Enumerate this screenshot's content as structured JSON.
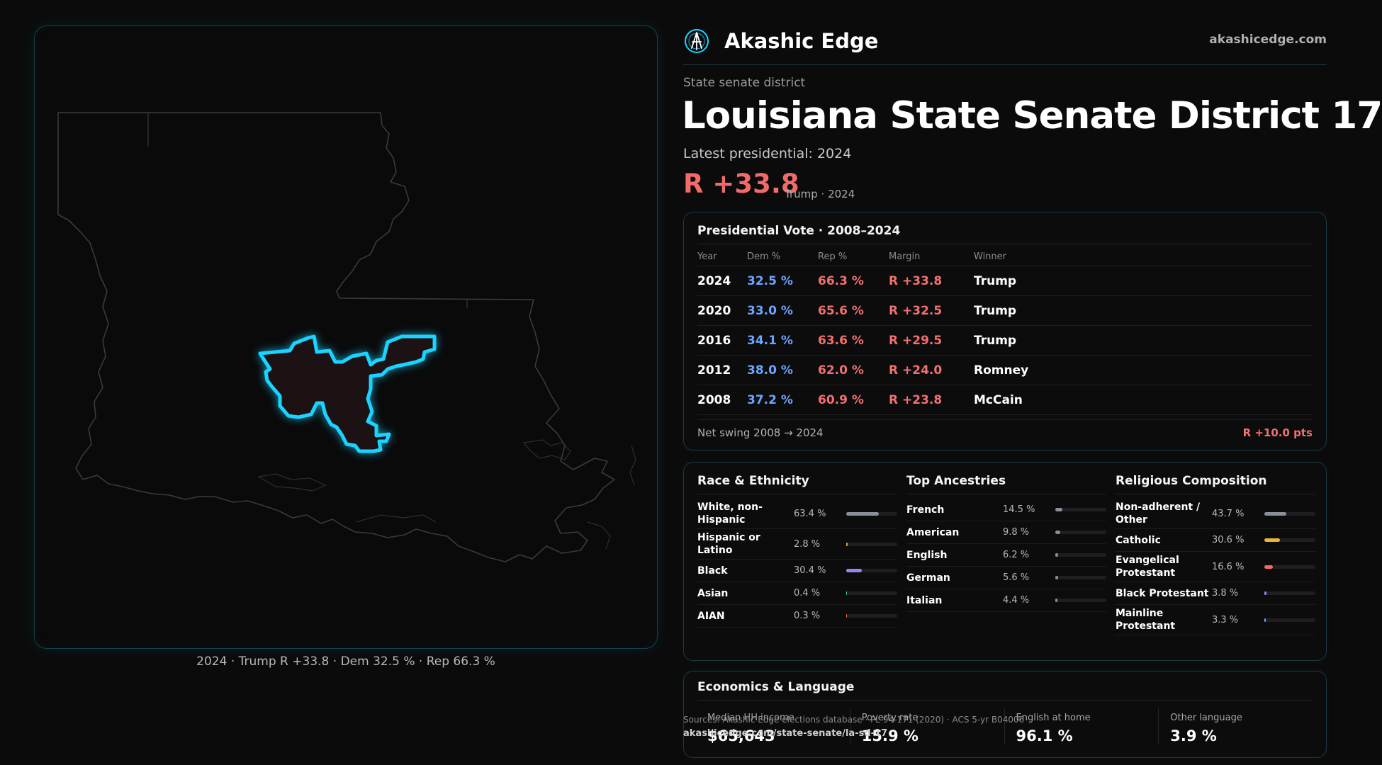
{
  "brand": {
    "name": "Akashic Edge",
    "url": "akashicedge.com"
  },
  "district": {
    "kind": "State senate district",
    "title": "Louisiana State Senate District 17",
    "latest_label": "Latest presidential: 2024",
    "margin_big": "R +33.8",
    "margin_sub": "Trump · 2024"
  },
  "map": {
    "caption": "2024 · Trump R +33.8 · Dem 32.5 % · Rep 66.3 %",
    "colors": {
      "outline": "#1ad3ff",
      "fill": "#1c1113",
      "state_line": "#3a3a3a"
    }
  },
  "presidential": {
    "title": "Presidential Vote · 2008–2024",
    "headers": {
      "year": "Year",
      "dem": "Dem %",
      "rep": "Rep %",
      "margin": "Margin",
      "winner": "Winner"
    },
    "rows": [
      {
        "year": "2024",
        "dem": "32.5 %",
        "rep": "66.3 %",
        "margin": "R +33.8",
        "winner": "Trump"
      },
      {
        "year": "2020",
        "dem": "33.0 %",
        "rep": "65.6 %",
        "margin": "R +32.5",
        "winner": "Trump"
      },
      {
        "year": "2016",
        "dem": "34.1 %",
        "rep": "63.6 %",
        "margin": "R +29.5",
        "winner": "Trump"
      },
      {
        "year": "2012",
        "dem": "38.0 %",
        "rep": "62.0 %",
        "margin": "R +24.0",
        "winner": "Romney"
      },
      {
        "year": "2008",
        "dem": "37.2 %",
        "rep": "60.9 %",
        "margin": "R +23.8",
        "winner": "McCain"
      }
    ],
    "swing_label": "Net swing 2008 → 2024",
    "swing_value": "R +10.0 pts",
    "colors": {
      "dem": "#6ea4ff",
      "rep": "#f27070"
    }
  },
  "race": {
    "title": "Race & Ethnicity",
    "rows": [
      {
        "label": "White, non-Hispanic",
        "pct": "63.4 %",
        "fraction": 0.634,
        "color": "#8a8f99"
      },
      {
        "label": "Hispanic or Latino",
        "pct": "2.8 %",
        "fraction": 0.028,
        "color": "#e0a33a"
      },
      {
        "label": "Black",
        "pct": "30.4 %",
        "fraction": 0.304,
        "color": "#9a83f0"
      },
      {
        "label": "Asian",
        "pct": "0.4 %",
        "fraction": 0.004,
        "color": "#3ec0a8"
      },
      {
        "label": "AIAN",
        "pct": "0.3 %",
        "fraction": 0.003,
        "color": "#e06a4a"
      }
    ]
  },
  "ancestry": {
    "title": "Top Ancestries",
    "rows": [
      {
        "label": "French",
        "pct": "14.5 %",
        "fraction": 0.145,
        "color": "#8a8f99"
      },
      {
        "label": "American",
        "pct": "9.8 %",
        "fraction": 0.098,
        "color": "#8a8f99"
      },
      {
        "label": "English",
        "pct": "6.2 %",
        "fraction": 0.062,
        "color": "#8a8f99"
      },
      {
        "label": "German",
        "pct": "5.6 %",
        "fraction": 0.056,
        "color": "#8a8f99"
      },
      {
        "label": "Italian",
        "pct": "4.4 %",
        "fraction": 0.044,
        "color": "#8a8f99"
      }
    ]
  },
  "religion": {
    "title": "Religious Composition",
    "rows": [
      {
        "label": "Non-adherent / Other",
        "pct": "43.7 %",
        "fraction": 0.437,
        "color": "#8a8f99"
      },
      {
        "label": "Catholic",
        "pct": "30.6 %",
        "fraction": 0.306,
        "color": "#e8b43a"
      },
      {
        "label": "Evangelical Protestant",
        "pct": "16.6 %",
        "fraction": 0.166,
        "color": "#f06a6a"
      },
      {
        "label": "Black Protestant",
        "pct": "3.8 %",
        "fraction": 0.038,
        "color": "#9a83f0"
      },
      {
        "label": "Mainline Protestant",
        "pct": "3.3 %",
        "fraction": 0.033,
        "color": "#6ea4ff"
      }
    ]
  },
  "economics": {
    "title": "Economics & Language",
    "cells": [
      {
        "label": "Median HH income",
        "value": "$65,643"
      },
      {
        "label": "Poverty rate",
        "value": "15.9 %"
      },
      {
        "label": "English at home",
        "value": "96.1 %"
      },
      {
        "label": "Other language",
        "value": "3.9 %"
      }
    ]
  },
  "sources": {
    "text": "Sources: Akashic Edge elections database · PL 94-171 (2020) · ACS 5-yr B04006",
    "url": "akashicedge.com/state-senate/la-sd-17"
  }
}
